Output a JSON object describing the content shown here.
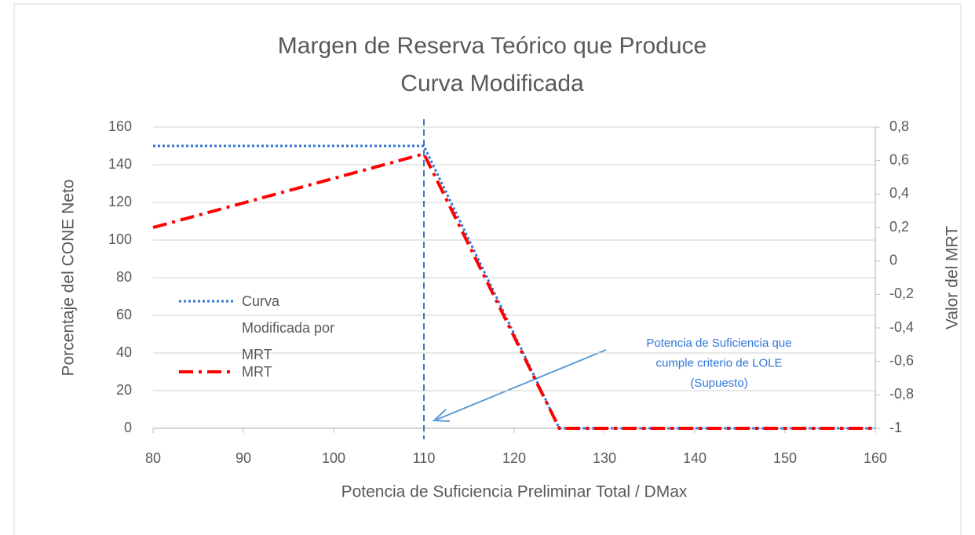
{
  "chart_data": {
    "type": "line",
    "title": [
      "Margen de Reserva Teórico que Produce",
      "Curva Modificada"
    ],
    "x_label": "Potencia de Suficiencia Preliminar Total / DMax",
    "y_label": "Porcentaje del CONE Neto",
    "y2_label": "Valor del MRT",
    "x": [
      80,
      110,
      125,
      160
    ],
    "series": [
      {
        "name": "Curva Modificada por MRT",
        "color": "#2e75d6",
        "style": "dotted",
        "values": [
          150,
          150,
          0,
          0
        ]
      },
      {
        "name": "MRT",
        "color": "#ff0000",
        "style": "dashdot",
        "axis": "y2",
        "values": [
          0.2,
          0.64,
          -1,
          -1
        ]
      }
    ],
    "xlim": [
      80,
      160
    ],
    "xticks": [
      80,
      90,
      100,
      110,
      120,
      130,
      140,
      150,
      160
    ],
    "ylim": [
      0,
      160
    ],
    "yticks": [
      0,
      20,
      40,
      60,
      80,
      100,
      120,
      140,
      160
    ],
    "y2lim": [
      -1,
      0.8
    ],
    "y2ticks": [
      -1,
      {
        "value": -0.8,
        "label": "-0,8"
      },
      {
        "value": -0.6,
        "label": "-0,6"
      },
      {
        "value": -0.4,
        "label": "-0,4"
      },
      {
        "value": -0.2,
        "label": "-0,2"
      },
      0,
      {
        "value": 0.2,
        "label": "0,2"
      },
      {
        "value": 0.4,
        "label": "0,4"
      },
      {
        "value": 0.6,
        "label": "0,6"
      },
      {
        "value": 0.8,
        "label": "0,8"
      }
    ],
    "vline": 110,
    "annotation": [
      "Potencia de Suficiencia que",
      "cumple criterio de LOLE",
      "(Supuesto)"
    ],
    "grid": true
  }
}
